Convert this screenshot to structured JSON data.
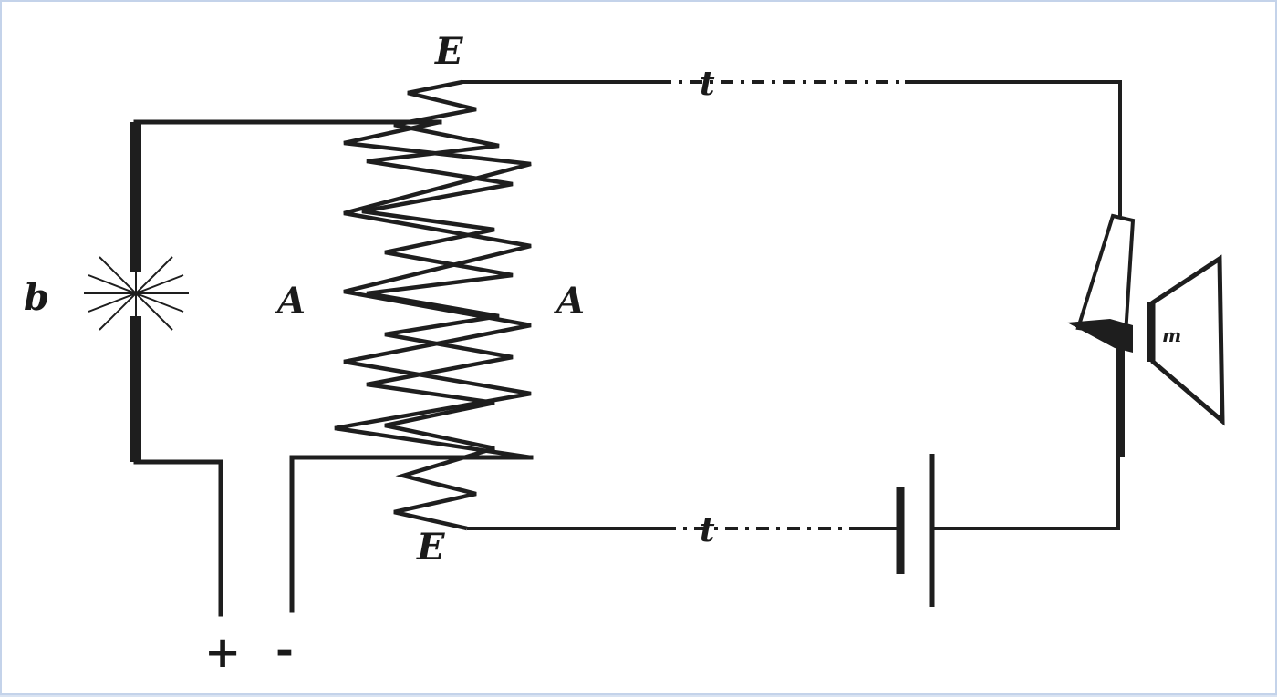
{
  "labels": {
    "top_coil": "E",
    "bottom_coil": "E",
    "left_coil": "A",
    "right_coil": "A",
    "arc_lamp": "b",
    "top_line": "t",
    "bottom_line": "t",
    "receiver": "m",
    "plus_terminal": "+",
    "minus_terminal": "-"
  }
}
